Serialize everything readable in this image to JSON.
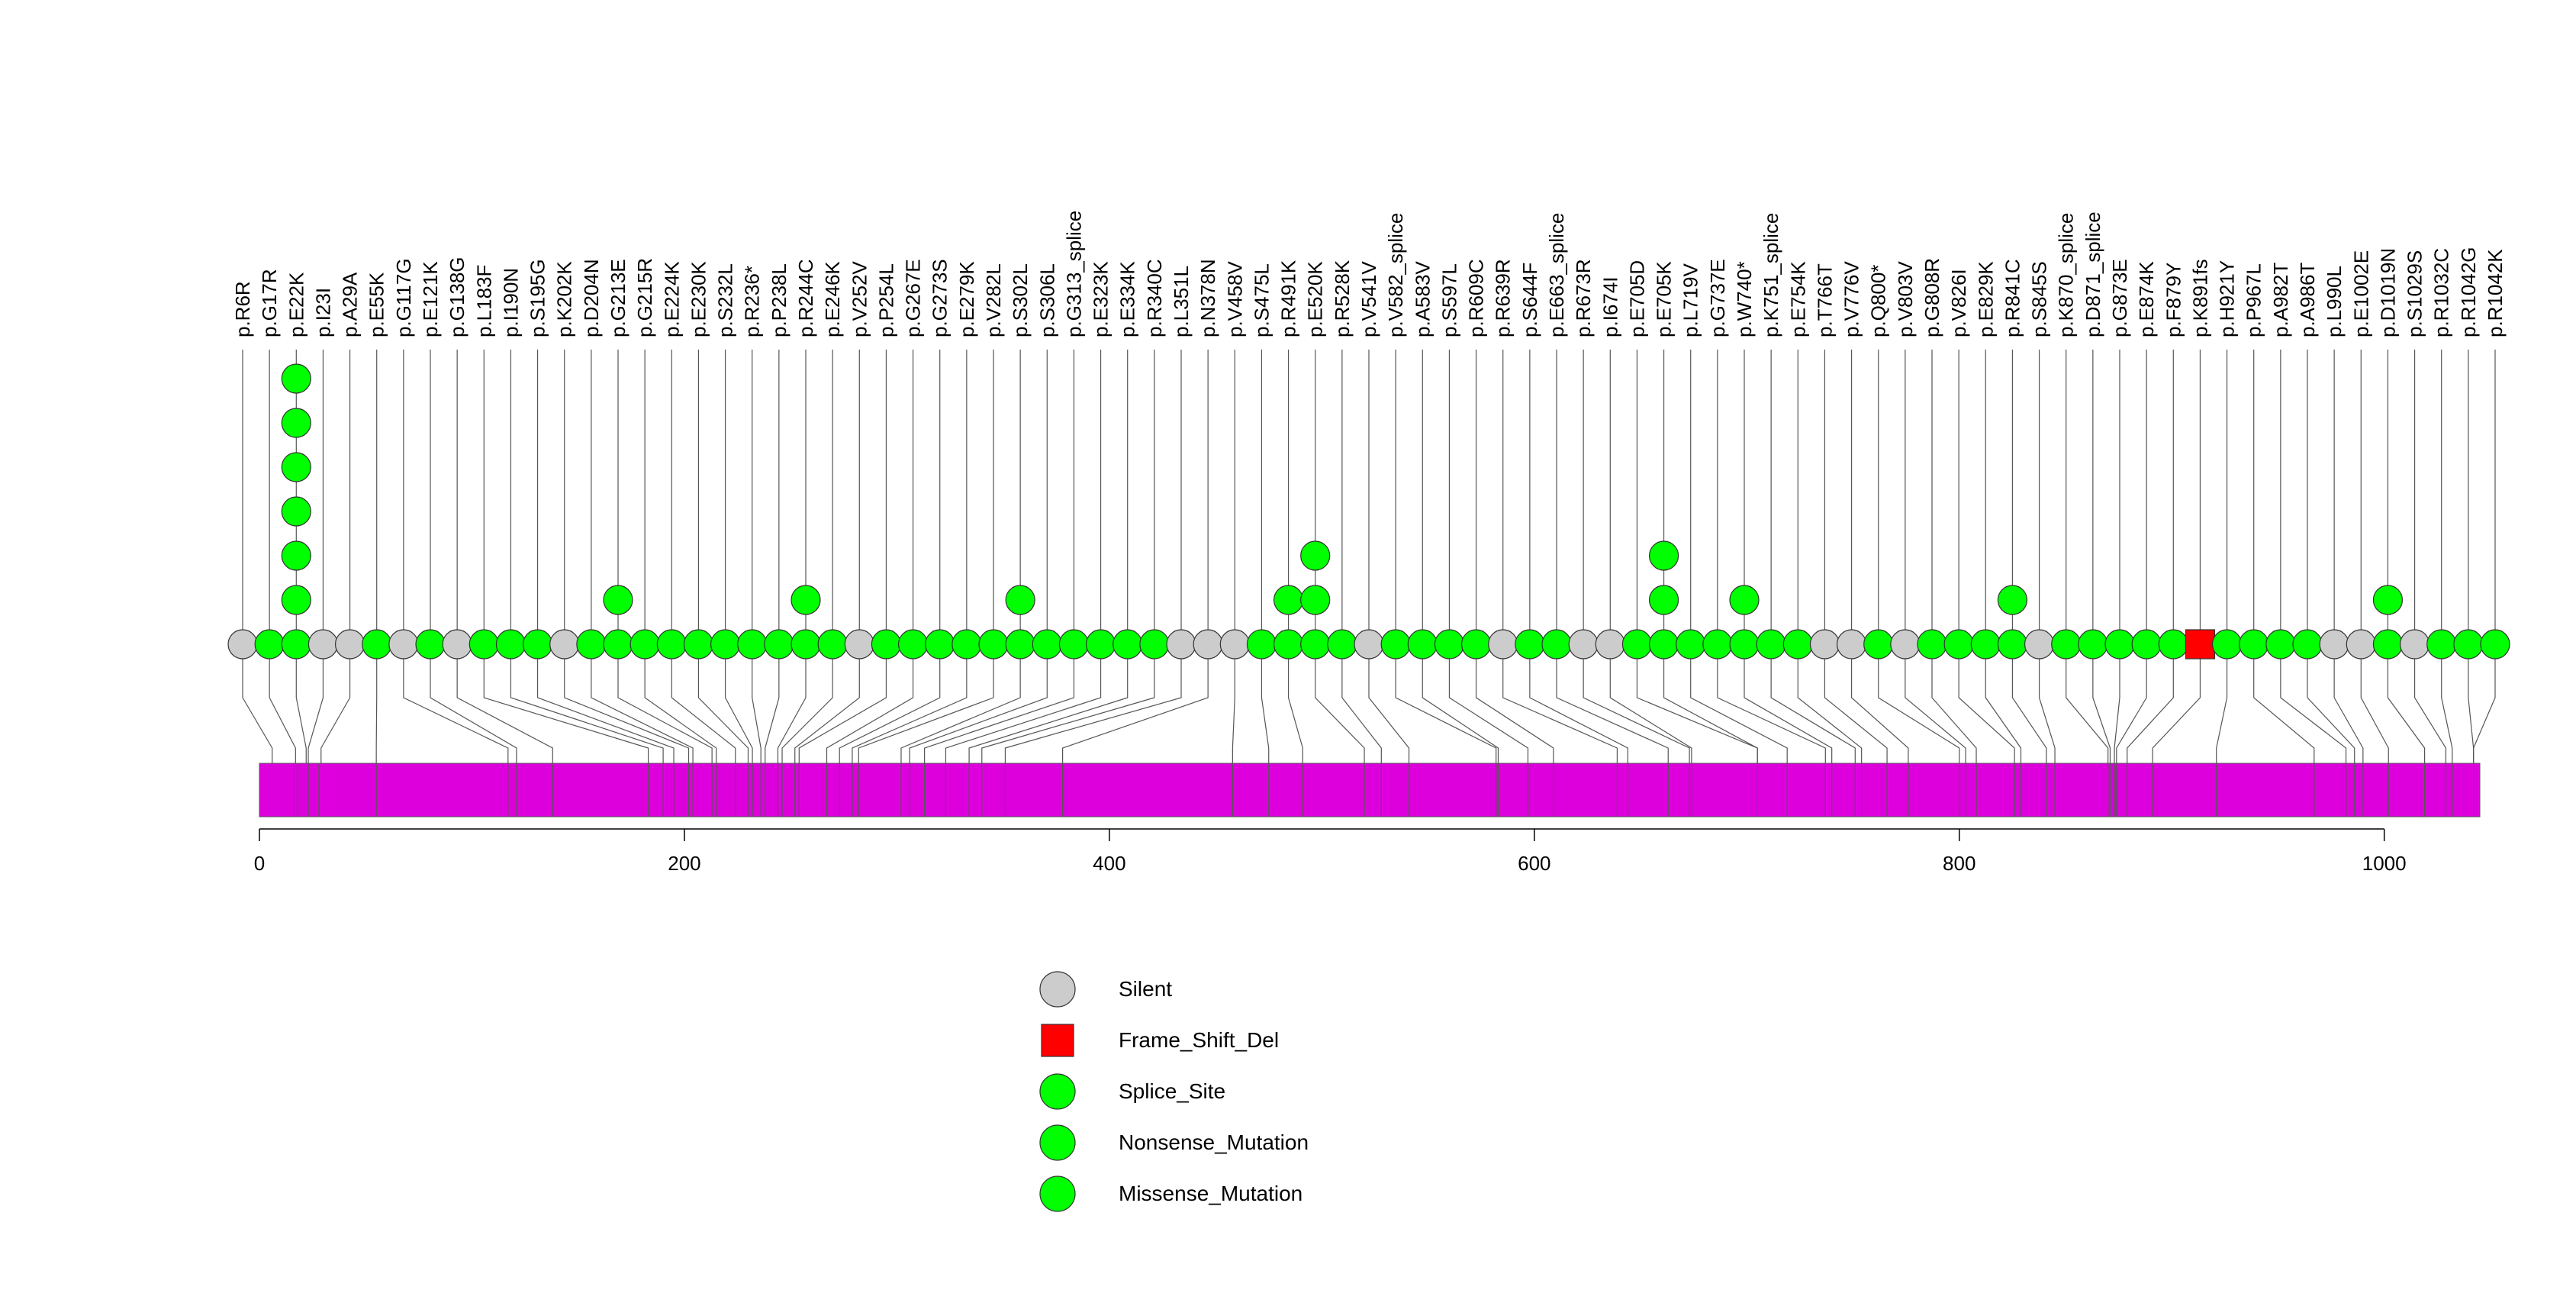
{
  "chart_data": {
    "type": "lollipop",
    "title": "",
    "xlabel": "",
    "ylabel": "",
    "xlim": [
      0,
      1045
    ],
    "x_ticks": [
      0,
      200,
      400,
      600,
      800,
      1000
    ],
    "x_tick_labels": [
      "0",
      "200",
      "400",
      "600",
      "800",
      "1000"
    ],
    "protein_length": 1045,
    "colors": {
      "Silent": "#cccccc",
      "Frame_Shift_Del": "#ff0000",
      "Splice_Site": "#00ff00",
      "Nonsense_Mutation": "#00ff00",
      "Missense_Mutation": "#00ff00",
      "domain": "#dd00dd"
    },
    "legend": [
      {
        "label": "Silent",
        "type": "Silent",
        "shape": "circle"
      },
      {
        "label": "Frame_Shift_Del",
        "type": "Frame_Shift_Del",
        "shape": "square"
      },
      {
        "label": "Splice_Site",
        "type": "Splice_Site",
        "shape": "circle"
      },
      {
        "label": "Nonsense_Mutation",
        "type": "Nonsense_Mutation",
        "shape": "circle"
      },
      {
        "label": "Missense_Mutation",
        "type": "Missense_Mutation",
        "shape": "circle"
      }
    ],
    "mutations": [
      {
        "label": "p.R6R",
        "pos": 6,
        "count": 1,
        "type": "Silent"
      },
      {
        "label": "p.G17R",
        "pos": 17,
        "count": 1,
        "type": "Missense_Mutation"
      },
      {
        "label": "p.E22K",
        "pos": 22,
        "count": 7,
        "type": "Missense_Mutation"
      },
      {
        "label": "p.I23I",
        "pos": 23,
        "count": 1,
        "type": "Silent"
      },
      {
        "label": "p.A29A",
        "pos": 29,
        "count": 1,
        "type": "Silent"
      },
      {
        "label": "p.E55K",
        "pos": 55,
        "count": 1,
        "type": "Missense_Mutation"
      },
      {
        "label": "p.G117G",
        "pos": 117,
        "count": 1,
        "type": "Silent"
      },
      {
        "label": "p.E121K",
        "pos": 121,
        "count": 1,
        "type": "Missense_Mutation"
      },
      {
        "label": "p.G138G",
        "pos": 138,
        "count": 1,
        "type": "Silent"
      },
      {
        "label": "p.L183F",
        "pos": 183,
        "count": 1,
        "type": "Missense_Mutation"
      },
      {
        "label": "p.I190N",
        "pos": 190,
        "count": 1,
        "type": "Missense_Mutation"
      },
      {
        "label": "p.S195G",
        "pos": 195,
        "count": 1,
        "type": "Missense_Mutation"
      },
      {
        "label": "p.K202K",
        "pos": 202,
        "count": 1,
        "type": "Silent"
      },
      {
        "label": "p.D204N",
        "pos": 204,
        "count": 1,
        "type": "Missense_Mutation"
      },
      {
        "label": "p.G213E",
        "pos": 213,
        "count": 2,
        "type": "Missense_Mutation"
      },
      {
        "label": "p.G215R",
        "pos": 215,
        "count": 1,
        "type": "Missense_Mutation"
      },
      {
        "label": "p.E224K",
        "pos": 224,
        "count": 1,
        "type": "Missense_Mutation"
      },
      {
        "label": "p.E230K",
        "pos": 230,
        "count": 1,
        "type": "Missense_Mutation"
      },
      {
        "label": "p.S232L",
        "pos": 232,
        "count": 1,
        "type": "Missense_Mutation"
      },
      {
        "label": "p.R236*",
        "pos": 236,
        "count": 1,
        "type": "Nonsense_Mutation"
      },
      {
        "label": "p.P238L",
        "pos": 238,
        "count": 1,
        "type": "Missense_Mutation"
      },
      {
        "label": "p.R244C",
        "pos": 244,
        "count": 2,
        "type": "Missense_Mutation"
      },
      {
        "label": "p.E246K",
        "pos": 246,
        "count": 1,
        "type": "Missense_Mutation"
      },
      {
        "label": "p.V252V",
        "pos": 252,
        "count": 1,
        "type": "Silent"
      },
      {
        "label": "p.P254L",
        "pos": 254,
        "count": 1,
        "type": "Missense_Mutation"
      },
      {
        "label": "p.G267E",
        "pos": 267,
        "count": 1,
        "type": "Missense_Mutation"
      },
      {
        "label": "p.G273S",
        "pos": 273,
        "count": 1,
        "type": "Missense_Mutation"
      },
      {
        "label": "p.E279K",
        "pos": 279,
        "count": 1,
        "type": "Missense_Mutation"
      },
      {
        "label": "p.V282L",
        "pos": 282,
        "count": 1,
        "type": "Missense_Mutation"
      },
      {
        "label": "p.S302L",
        "pos": 302,
        "count": 2,
        "type": "Missense_Mutation"
      },
      {
        "label": "p.S306L",
        "pos": 306,
        "count": 1,
        "type": "Missense_Mutation"
      },
      {
        "label": "p.G313_splice",
        "pos": 313,
        "count": 1,
        "type": "Splice_Site"
      },
      {
        "label": "p.E323K",
        "pos": 323,
        "count": 1,
        "type": "Missense_Mutation"
      },
      {
        "label": "p.E334K",
        "pos": 334,
        "count": 1,
        "type": "Missense_Mutation"
      },
      {
        "label": "p.R340C",
        "pos": 340,
        "count": 1,
        "type": "Missense_Mutation"
      },
      {
        "label": "p.L351L",
        "pos": 351,
        "count": 1,
        "type": "Silent"
      },
      {
        "label": "p.N378N",
        "pos": 378,
        "count": 1,
        "type": "Silent"
      },
      {
        "label": "p.V458V",
        "pos": 458,
        "count": 1,
        "type": "Silent"
      },
      {
        "label": "p.S475L",
        "pos": 475,
        "count": 1,
        "type": "Missense_Mutation"
      },
      {
        "label": "p.R491K",
        "pos": 491,
        "count": 2,
        "type": "Missense_Mutation"
      },
      {
        "label": "p.E520K",
        "pos": 520,
        "count": 3,
        "type": "Missense_Mutation"
      },
      {
        "label": "p.R528K",
        "pos": 528,
        "count": 1,
        "type": "Missense_Mutation"
      },
      {
        "label": "p.V541V",
        "pos": 541,
        "count": 1,
        "type": "Silent"
      },
      {
        "label": "p.V582_splice",
        "pos": 582,
        "count": 1,
        "type": "Splice_Site"
      },
      {
        "label": "p.A583V",
        "pos": 583,
        "count": 1,
        "type": "Missense_Mutation"
      },
      {
        "label": "p.S597L",
        "pos": 597,
        "count": 1,
        "type": "Missense_Mutation"
      },
      {
        "label": "p.R609C",
        "pos": 609,
        "count": 1,
        "type": "Missense_Mutation"
      },
      {
        "label": "p.R639R",
        "pos": 639,
        "count": 1,
        "type": "Silent"
      },
      {
        "label": "p.S644F",
        "pos": 644,
        "count": 1,
        "type": "Missense_Mutation"
      },
      {
        "label": "p.E663_splice",
        "pos": 663,
        "count": 1,
        "type": "Splice_Site"
      },
      {
        "label": "p.R673R",
        "pos": 673,
        "count": 1,
        "type": "Silent"
      },
      {
        "label": "p.I674I",
        "pos": 674,
        "count": 1,
        "type": "Silent"
      },
      {
        "label": "p.E705D",
        "pos": 705,
        "count": 1,
        "type": "Missense_Mutation"
      },
      {
        "label": "p.E705K",
        "pos": 705,
        "count": 3,
        "type": "Missense_Mutation"
      },
      {
        "label": "p.L719V",
        "pos": 719,
        "count": 1,
        "type": "Missense_Mutation"
      },
      {
        "label": "p.G737E",
        "pos": 737,
        "count": 1,
        "type": "Missense_Mutation"
      },
      {
        "label": "p.W740*",
        "pos": 740,
        "count": 2,
        "type": "Nonsense_Mutation"
      },
      {
        "label": "p.K751_splice",
        "pos": 751,
        "count": 1,
        "type": "Splice_Site"
      },
      {
        "label": "p.E754K",
        "pos": 754,
        "count": 1,
        "type": "Missense_Mutation"
      },
      {
        "label": "p.T766T",
        "pos": 766,
        "count": 1,
        "type": "Silent"
      },
      {
        "label": "p.V776V",
        "pos": 776,
        "count": 1,
        "type": "Silent"
      },
      {
        "label": "p.Q800*",
        "pos": 800,
        "count": 1,
        "type": "Nonsense_Mutation"
      },
      {
        "label": "p.V803V",
        "pos": 803,
        "count": 1,
        "type": "Silent"
      },
      {
        "label": "p.G808R",
        "pos": 808,
        "count": 1,
        "type": "Missense_Mutation"
      },
      {
        "label": "p.V826I",
        "pos": 826,
        "count": 1,
        "type": "Missense_Mutation"
      },
      {
        "label": "p.E829K",
        "pos": 829,
        "count": 1,
        "type": "Missense_Mutation"
      },
      {
        "label": "p.R841C",
        "pos": 841,
        "count": 2,
        "type": "Missense_Mutation"
      },
      {
        "label": "p.S845S",
        "pos": 845,
        "count": 1,
        "type": "Silent"
      },
      {
        "label": "p.K870_splice",
        "pos": 870,
        "count": 1,
        "type": "Splice_Site"
      },
      {
        "label": "p.D871_splice",
        "pos": 871,
        "count": 1,
        "type": "Splice_Site"
      },
      {
        "label": "p.G873E",
        "pos": 873,
        "count": 1,
        "type": "Missense_Mutation"
      },
      {
        "label": "p.E874K",
        "pos": 874,
        "count": 1,
        "type": "Missense_Mutation"
      },
      {
        "label": "p.F879Y",
        "pos": 879,
        "count": 1,
        "type": "Missense_Mutation"
      },
      {
        "label": "p.K891fs",
        "pos": 891,
        "count": 1,
        "type": "Frame_Shift_Del"
      },
      {
        "label": "p.H921Y",
        "pos": 921,
        "count": 1,
        "type": "Missense_Mutation"
      },
      {
        "label": "p.P967L",
        "pos": 967,
        "count": 1,
        "type": "Missense_Mutation"
      },
      {
        "label": "p.A982T",
        "pos": 982,
        "count": 1,
        "type": "Missense_Mutation"
      },
      {
        "label": "p.A986T",
        "pos": 986,
        "count": 1,
        "type": "Missense_Mutation"
      },
      {
        "label": "p.L990L",
        "pos": 990,
        "count": 1,
        "type": "Silent"
      },
      {
        "label": "p.E1002E",
        "pos": 1002,
        "count": 1,
        "type": "Silent"
      },
      {
        "label": "p.D1019N",
        "pos": 1019,
        "count": 2,
        "type": "Missense_Mutation"
      },
      {
        "label": "p.S1029S",
        "pos": 1029,
        "count": 1,
        "type": "Silent"
      },
      {
        "label": "p.R1032C",
        "pos": 1032,
        "count": 1,
        "type": "Missense_Mutation"
      },
      {
        "label": "p.R1042G",
        "pos": 1042,
        "count": 1,
        "type": "Missense_Mutation"
      },
      {
        "label": "p.R1042K",
        "pos": 1042,
        "count": 1,
        "type": "Missense_Mutation"
      }
    ],
    "domain_boundaries": [
      16,
      18,
      23,
      28,
      55,
      117,
      121,
      138,
      183,
      190,
      195,
      202,
      204,
      213,
      215,
      224,
      230,
      232,
      236,
      238,
      244,
      246,
      252,
      254,
      267,
      273,
      279,
      282,
      302,
      306,
      313,
      323,
      334,
      340,
      351,
      378,
      458,
      475,
      491,
      520,
      528,
      541,
      582,
      583,
      597,
      609,
      639,
      644,
      663,
      673,
      674,
      705,
      719,
      737,
      740,
      751,
      754,
      766,
      776,
      800,
      803,
      808,
      826,
      829,
      841,
      845,
      870,
      871,
      873,
      874,
      879,
      891,
      921,
      967,
      982,
      986,
      990,
      1002,
      1019,
      1029,
      1032,
      1042
    ]
  }
}
